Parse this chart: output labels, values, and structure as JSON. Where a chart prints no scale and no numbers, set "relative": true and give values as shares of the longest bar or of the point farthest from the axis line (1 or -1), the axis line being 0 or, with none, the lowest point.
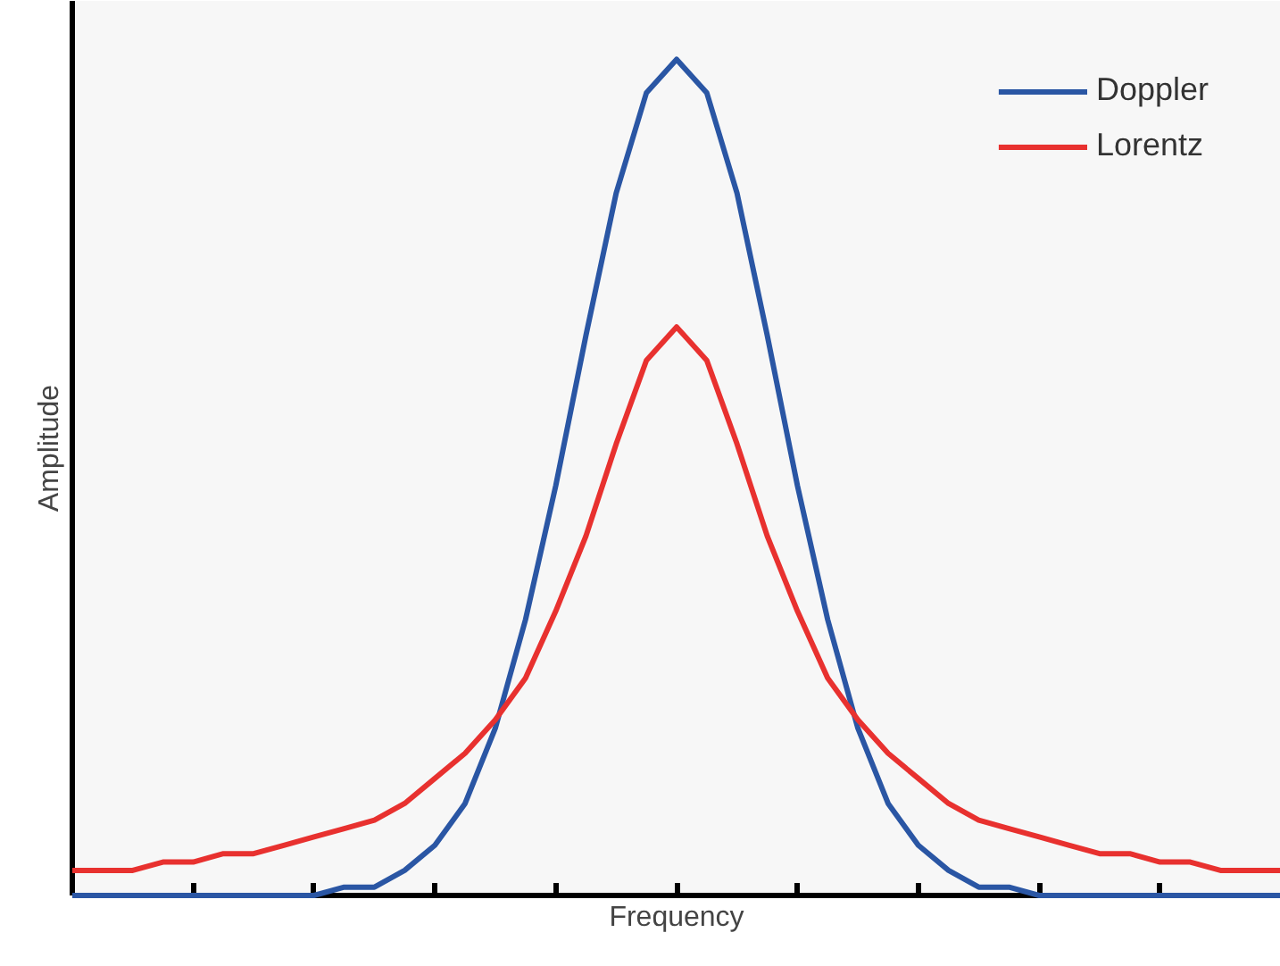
{
  "chart_data": {
    "type": "line",
    "relative": true,
    "xlabel": "Frequency",
    "ylabel": "Amplitude",
    "legend": "top right",
    "grid": false,
    "marker": "none",
    "line_style": "solid",
    "categories": [
      null,
      null,
      null,
      null,
      null,
      null,
      null,
      null,
      null,
      null,
      null,
      null,
      null,
      null,
      null,
      null,
      null,
      null,
      null,
      null,
      null,
      null,
      null,
      null,
      null,
      null,
      null,
      null,
      null,
      null,
      null,
      null,
      null,
      null,
      null,
      null,
      null,
      null,
      null,
      null,
      null
    ],
    "series": [
      {
        "name": "Doppler",
        "color": "#2a56a4",
        "values": [
          0,
          0,
          0,
          0,
          0,
          0,
          0,
          0,
          0,
          0.01,
          0.01,
          0.03,
          0.06,
          0.11,
          0.2,
          0.33,
          0.49,
          0.67,
          0.84,
          0.96,
          1,
          0.96,
          0.84,
          0.67,
          0.49,
          0.33,
          0.2,
          0.11,
          0.06,
          0.03,
          0.01,
          0.01,
          0,
          0,
          0,
          0,
          0,
          0,
          0,
          0,
          0
        ]
      },
      {
        "name": "Lorentz",
        "color": "#e8312f",
        "values": [
          0.03,
          0.03,
          0.03,
          0.04,
          0.04,
          0.05,
          0.05,
          0.06,
          0.07,
          0.08,
          0.09,
          0.11,
          0.14,
          0.17,
          0.21,
          0.26,
          0.34,
          0.43,
          0.54,
          0.64,
          0.68,
          0.64,
          0.54,
          0.43,
          0.34,
          0.26,
          0.21,
          0.17,
          0.14,
          0.11,
          0.09,
          0.08,
          0.07,
          0.06,
          0.05,
          0.05,
          0.04,
          0.04,
          0.03,
          0.03,
          0.03
        ]
      }
    ]
  }
}
